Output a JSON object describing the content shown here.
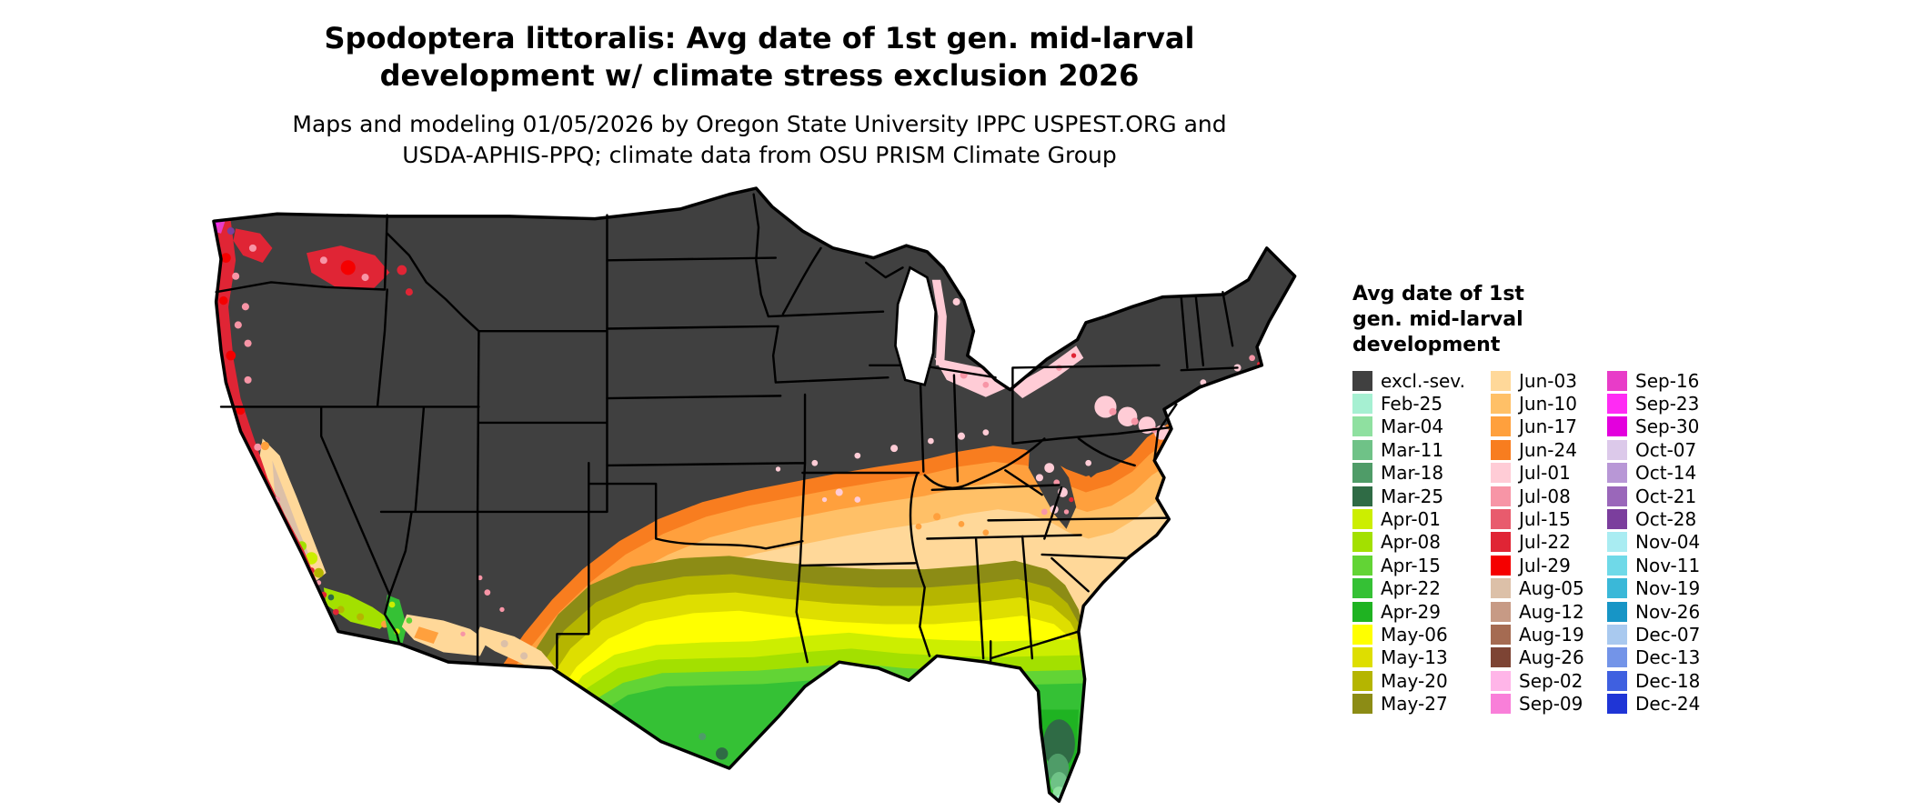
{
  "title": {
    "line1": "Spodoptera littoralis: Avg date of 1st gen. mid-larval",
    "line2": "development w/ climate stress exclusion 2026"
  },
  "subtitle": {
    "line1": "Maps and modeling 01/05/2026 by Oregon State University IPPC USPEST.ORG and",
    "line2": "USDA-APHIS-PPQ; climate data from OSU PRISM Climate Group"
  },
  "map": {
    "area": "contiguous-united-states",
    "background_color": "#ffffff",
    "exclusion_color": "#404040",
    "border_color": "#000000"
  },
  "legend": {
    "title_lines": [
      "Avg date of 1st",
      "gen. mid-larval",
      "development"
    ],
    "columns": [
      {
        "entries": [
          {
            "label": "excl.-sev.",
            "color": "#404040"
          },
          {
            "label": "Feb-25",
            "color": "#a6f0d2"
          },
          {
            "label": "Mar-04",
            "color": "#8fe0a0"
          },
          {
            "label": "Mar-11",
            "color": "#6fc287"
          },
          {
            "label": "Mar-18",
            "color": "#4f9c68"
          },
          {
            "label": "Mar-25",
            "color": "#2f6b45"
          },
          {
            "label": "Apr-01",
            "color": "#ccee00"
          },
          {
            "label": "Apr-08",
            "color": "#a3e000"
          },
          {
            "label": "Apr-15",
            "color": "#62d435"
          },
          {
            "label": "Apr-22",
            "color": "#35c135"
          },
          {
            "label": "Apr-29",
            "color": "#1fb322"
          },
          {
            "label": "May-06",
            "color": "#ffff00"
          },
          {
            "label": "May-13",
            "color": "#dede00"
          },
          {
            "label": "May-20",
            "color": "#b5b500"
          },
          {
            "label": "May-27",
            "color": "#8c8c15"
          }
        ]
      },
      {
        "entries": [
          {
            "label": "Jun-03",
            "color": "#ffd899"
          },
          {
            "label": "Jun-10",
            "color": "#ffc067"
          },
          {
            "label": "Jun-17",
            "color": "#ffa03d"
          },
          {
            "label": "Jun-24",
            "color": "#f87d1f"
          },
          {
            "label": "Jul-01",
            "color": "#ffccd6"
          },
          {
            "label": "Jul-08",
            "color": "#f795a6"
          },
          {
            "label": "Jul-15",
            "color": "#e85b6d"
          },
          {
            "label": "Jul-22",
            "color": "#e02535"
          },
          {
            "label": "Jul-29",
            "color": "#f50000"
          },
          {
            "label": "Aug-05",
            "color": "#dcc0a8"
          },
          {
            "label": "Aug-12",
            "color": "#c79a85"
          },
          {
            "label": "Aug-19",
            "color": "#a56b52"
          },
          {
            "label": "Aug-26",
            "color": "#7d4434"
          },
          {
            "label": "Sep-02",
            "color": "#ffb5e8"
          },
          {
            "label": "Sep-09",
            "color": "#f97fd9"
          }
        ]
      },
      {
        "entries": [
          {
            "label": "Sep-16",
            "color": "#e83cc8"
          },
          {
            "label": "Sep-23",
            "color": "#ff2bf4"
          },
          {
            "label": "Sep-30",
            "color": "#e300dd"
          },
          {
            "label": "Oct-07",
            "color": "#dcc9ea"
          },
          {
            "label": "Oct-14",
            "color": "#b897d6"
          },
          {
            "label": "Oct-21",
            "color": "#9a67ba"
          },
          {
            "label": "Oct-28",
            "color": "#7b3e9d"
          },
          {
            "label": "Nov-04",
            "color": "#a9ecf2"
          },
          {
            "label": "Nov-11",
            "color": "#6fd9e8"
          },
          {
            "label": "Nov-19",
            "color": "#3ab8d8"
          },
          {
            "label": "Nov-26",
            "color": "#1795c6"
          },
          {
            "label": "Dec-07",
            "color": "#a9c9ef"
          },
          {
            "label": "Dec-13",
            "color": "#7394e8"
          },
          {
            "label": "Dec-18",
            "color": "#3f60e0"
          },
          {
            "label": "Dec-24",
            "color": "#1f35d6"
          }
        ]
      }
    ]
  }
}
